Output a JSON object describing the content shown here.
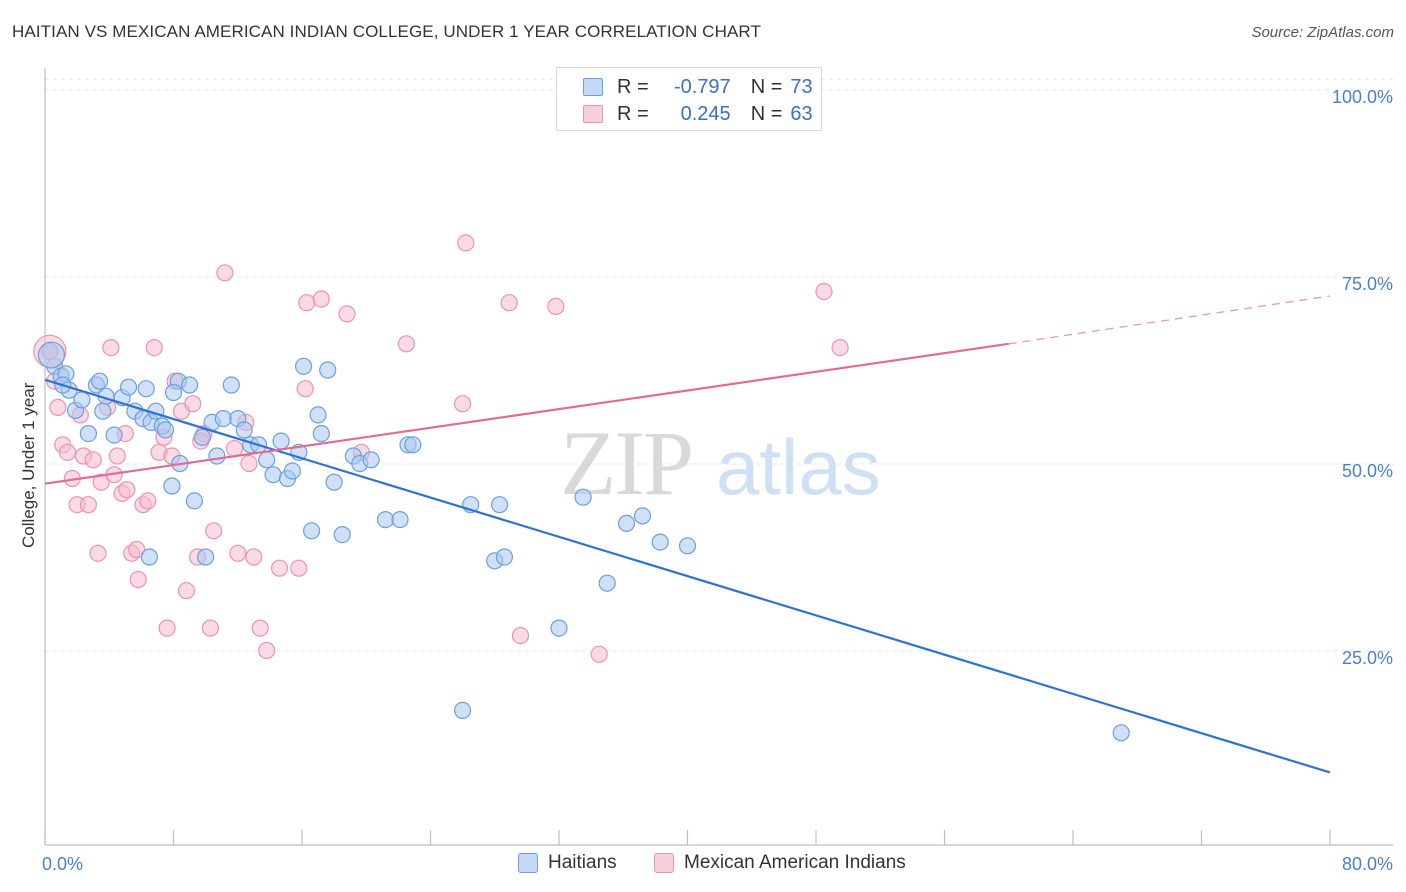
{
  "header": {
    "title": "HAITIAN VS MEXICAN AMERICAN INDIAN COLLEGE, UNDER 1 YEAR CORRELATION CHART",
    "source": "Source: ZipAtlas.com"
  },
  "watermark": {
    "zip": "ZIP",
    "atlas": "atlas"
  },
  "colors": {
    "blue_fill": "#a9c8f0",
    "blue_stroke": "#6a9fe0",
    "blue_line": "#2f72d6",
    "pink_fill": "#f5bccd",
    "pink_stroke": "#ec93b0",
    "pink_line": "#e36b93",
    "tick_text": "#4a7fd0",
    "grid": "#e3e3e3"
  },
  "legend": {
    "rows": [
      {
        "r_label": "R =",
        "r_value": "-0.797",
        "n_label": "N =",
        "n_value": "73"
      },
      {
        "r_label": "R =",
        "r_value": "0.245",
        "n_label": "N =",
        "n_value": "63"
      }
    ]
  },
  "chart_data": {
    "type": "scatter",
    "title": "HAITIAN VS MEXICAN AMERICAN INDIAN COLLEGE, UNDER 1 YEAR CORRELATION CHART",
    "xlabel": "",
    "ylabel": "College, Under 1 year",
    "xlim": [
      0,
      80
    ],
    "ylim": [
      0,
      105
    ],
    "x_tick_labels": [
      {
        "value": 0,
        "label": "0.0%"
      },
      {
        "value": 80,
        "label": "80.0%"
      }
    ],
    "y_tick_labels": [
      {
        "value": 25,
        "label": "25.0%"
      },
      {
        "value": 50,
        "label": "50.0%"
      },
      {
        "value": 75,
        "label": "75.0%"
      },
      {
        "value": 100,
        "label": "100.0%"
      }
    ],
    "series": [
      {
        "name": "Haitians",
        "r": -0.797,
        "n": 73,
        "trend": {
          "x": [
            0,
            80
          ],
          "y": [
            62.2,
            9.7
          ]
        },
        "points": [
          [
            0.3,
            66.0
          ],
          [
            0.6,
            64.0
          ],
          [
            1.0,
            62.7
          ],
          [
            1.3,
            63.0
          ],
          [
            1.5,
            60.8
          ],
          [
            1.9,
            58.1
          ],
          [
            2.3,
            59.5
          ],
          [
            2.7,
            55.0
          ],
          [
            3.2,
            61.5
          ],
          [
            3.4,
            62.0
          ],
          [
            3.8,
            60.0
          ],
          [
            4.3,
            54.8
          ],
          [
            4.8,
            59.8
          ],
          [
            5.2,
            61.2
          ],
          [
            5.6,
            58.0
          ],
          [
            6.1,
            57.0
          ],
          [
            6.3,
            61.0
          ],
          [
            6.6,
            56.5
          ],
          [
            6.9,
            58.0
          ],
          [
            7.3,
            56.0
          ],
          [
            7.5,
            55.5
          ],
          [
            7.9,
            48.0
          ],
          [
            8.3,
            62.0
          ],
          [
            8.4,
            51.0
          ],
          [
            9.0,
            61.5
          ],
          [
            9.3,
            46.0
          ],
          [
            9.8,
            54.5
          ],
          [
            10.4,
            56.5
          ],
          [
            10.7,
            52.0
          ],
          [
            11.1,
            57.0
          ],
          [
            11.6,
            61.5
          ],
          [
            12.0,
            57.0
          ],
          [
            12.4,
            55.5
          ],
          [
            12.8,
            53.5
          ],
          [
            13.3,
            53.5
          ],
          [
            13.8,
            51.5
          ],
          [
            14.2,
            49.5
          ],
          [
            14.7,
            54.0
          ],
          [
            15.1,
            49.0
          ],
          [
            15.4,
            50.0
          ],
          [
            15.8,
            52.5
          ],
          [
            16.1,
            64.0
          ],
          [
            16.6,
            42.0
          ],
          [
            17.0,
            57.5
          ],
          [
            17.2,
            55.0
          ],
          [
            17.6,
            63.5
          ],
          [
            18.0,
            48.5
          ],
          [
            18.5,
            41.5
          ],
          [
            19.2,
            52.0
          ],
          [
            19.6,
            51.0
          ],
          [
            20.3,
            51.5
          ],
          [
            21.2,
            43.5
          ],
          [
            22.1,
            43.5
          ],
          [
            22.6,
            53.5
          ],
          [
            22.9,
            53.5
          ],
          [
            6.5,
            38.5
          ],
          [
            10.0,
            38.5
          ],
          [
            26.5,
            45.5
          ],
          [
            28.3,
            45.5
          ],
          [
            28.0,
            38.0
          ],
          [
            28.6,
            38.5
          ],
          [
            33.5,
            46.5
          ],
          [
            35.0,
            35.0
          ],
          [
            36.2,
            43.0
          ],
          [
            37.2,
            44.0
          ],
          [
            38.3,
            40.5
          ],
          [
            40.0,
            40.0
          ],
          [
            26.0,
            18.0
          ],
          [
            32.0,
            29.0
          ],
          [
            67.0,
            15.0
          ],
          [
            1.1,
            61.5
          ],
          [
            3.6,
            58.0
          ],
          [
            8.0,
            60.5
          ]
        ]
      },
      {
        "name": "Mexican American Indians",
        "r": 0.245,
        "n": 63,
        "trend": {
          "x": [
            0,
            60
          ],
          "y": [
            48.3,
            67.0
          ],
          "dashed_to": [
            80,
            73.4
          ]
        },
        "points": [
          [
            0.3,
            66.0
          ],
          [
            0.6,
            62.0
          ],
          [
            0.8,
            58.5
          ],
          [
            1.1,
            53.5
          ],
          [
            1.4,
            52.5
          ],
          [
            1.7,
            49.0
          ],
          [
            2.0,
            45.5
          ],
          [
            2.4,
            52.0
          ],
          [
            2.7,
            45.5
          ],
          [
            3.0,
            51.5
          ],
          [
            3.3,
            39.0
          ],
          [
            3.5,
            48.5
          ],
          [
            3.9,
            58.5
          ],
          [
            4.1,
            66.5
          ],
          [
            4.3,
            49.5
          ],
          [
            4.5,
            52.0
          ],
          [
            4.8,
            47.0
          ],
          [
            5.1,
            47.5
          ],
          [
            5.4,
            39.0
          ],
          [
            5.7,
            39.5
          ],
          [
            5.8,
            35.5
          ],
          [
            6.1,
            45.5
          ],
          [
            6.4,
            46.0
          ],
          [
            6.8,
            66.5
          ],
          [
            7.1,
            52.5
          ],
          [
            7.4,
            54.5
          ],
          [
            7.6,
            29.0
          ],
          [
            7.9,
            52.0
          ],
          [
            8.1,
            62.0
          ],
          [
            8.5,
            58.0
          ],
          [
            8.8,
            34.0
          ],
          [
            9.2,
            59.0
          ],
          [
            9.5,
            38.5
          ],
          [
            9.9,
            55.0
          ],
          [
            10.3,
            29.0
          ],
          [
            10.5,
            42.0
          ],
          [
            11.2,
            76.5
          ],
          [
            12.0,
            39.0
          ],
          [
            12.5,
            56.5
          ],
          [
            12.7,
            51.0
          ],
          [
            13.0,
            38.5
          ],
          [
            13.4,
            29.0
          ],
          [
            13.8,
            26.0
          ],
          [
            14.6,
            37.0
          ],
          [
            15.8,
            37.0
          ],
          [
            16.2,
            61.0
          ],
          [
            16.3,
            72.5
          ],
          [
            17.2,
            73.0
          ],
          [
            18.8,
            71.0
          ],
          [
            19.7,
            52.5
          ],
          [
            22.5,
            67.0
          ],
          [
            26.0,
            59.0
          ],
          [
            26.2,
            80.5
          ],
          [
            28.9,
            72.5
          ],
          [
            29.6,
            28.0
          ],
          [
            31.8,
            72.0
          ],
          [
            34.5,
            25.5
          ],
          [
            48.5,
            74.0
          ],
          [
            49.5,
            66.5
          ],
          [
            2.2,
            57.5
          ],
          [
            5.0,
            55.0
          ],
          [
            9.7,
            54.0
          ],
          [
            11.8,
            53.0
          ]
        ]
      }
    ]
  },
  "bottom_legend": {
    "items": [
      {
        "label": "Haitians"
      },
      {
        "label": "Mexican American Indians"
      }
    ]
  }
}
